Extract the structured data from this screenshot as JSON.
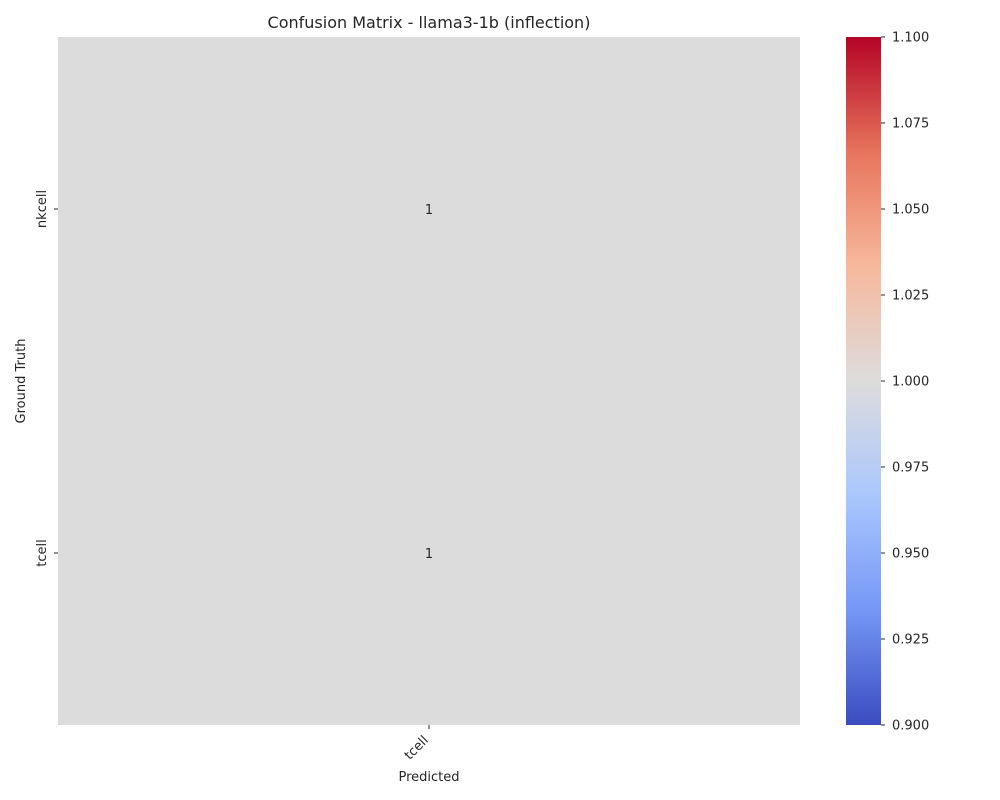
{
  "chart_data": {
    "type": "heatmap",
    "title": "Confusion Matrix - llama3-1b (inflection)",
    "xlabel": "Predicted",
    "ylabel": "Ground Truth",
    "x_categories": [
      "tcell"
    ],
    "y_categories": [
      "nkcell",
      "tcell"
    ],
    "values": [
      [
        1
      ],
      [
        1
      ]
    ],
    "annotations": [
      "1",
      "1"
    ],
    "colormap": "coolwarm",
    "colorbar": {
      "vmin": 0.9,
      "vmax": 1.1,
      "ticks": [
        "0.900",
        "0.925",
        "0.950",
        "0.975",
        "1.000",
        "1.025",
        "1.050",
        "1.075",
        "1.100"
      ]
    },
    "cell_color": "#dddcdc",
    "colormap_stops": [
      "#3b4cc0",
      "#7597f6",
      "#aac7fd",
      "#dddcdc",
      "#f7b89c",
      "#e7745b",
      "#b40426"
    ],
    "grid": false
  }
}
